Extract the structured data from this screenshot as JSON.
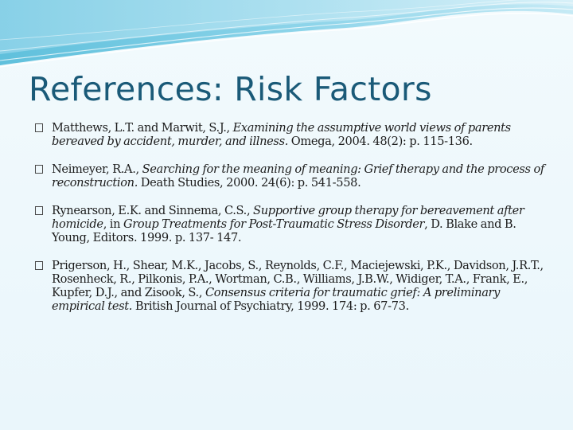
{
  "slide": {
    "title": "References: Risk Factors"
  },
  "references": [
    {
      "authors": "Matthews, L.T. and Marwit, S.J., ",
      "title": "Examining the assumptive world views of parents bereaved by accident, murder, and illness.",
      "source": " Omega, 2004. 48(2): p. 115-136."
    },
    {
      "authors": "Neimeyer, R.A., ",
      "title": "Searching for the meaning of meaning: Grief therapy and the process of reconstruction.",
      "source": " Death Studies, 2000. 24(6): p. 541-558."
    },
    {
      "authors": "Rynearson, E.K. and Sinnema, C.S., ",
      "title": "Supportive group therapy for bereavement after homicide",
      "source_a": ", in ",
      "book": "Group Treatments for Post-Traumatic Stress Disorder",
      "source_b": ", D. Blake and B. Young, Editors. 1999. p. 137- 147."
    },
    {
      "authors": "Prigerson, H., Shear, M.K., Jacobs, S., Reynolds, C.F., Maciejewski, P.K., Davidson, J.R.T., Rosenheck, R., Pilkonis, P.A., Wortman, C.B., Williams, J.B.W., Widiger, T.A., Frank, E., Kupfer, D.J., and Zisook, S., ",
      "title": "Consensus criteria for traumatic grief: A preliminary empirical test.",
      "source": " British Journal of Psychiatry, 1999. 174: p. 67-73."
    }
  ]
}
